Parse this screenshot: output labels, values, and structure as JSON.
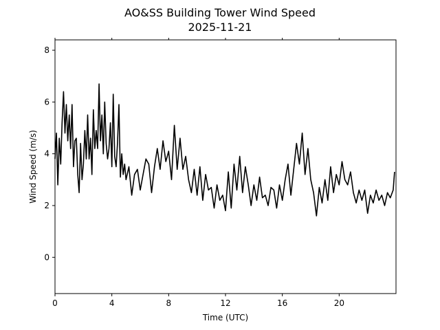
{
  "chart_data": {
    "type": "line",
    "title": "AO&SS Building Tower Wind Speed",
    "subtitle": "2025-11-21",
    "xlabel": "Time (UTC)",
    "ylabel": "Wind Speed (m/s)",
    "xlim": [
      0,
      24
    ],
    "ylim": [
      -1.4,
      8.4
    ],
    "xticks": [
      0,
      4,
      8,
      12,
      16,
      20
    ],
    "yticks": [
      0,
      2,
      4,
      6,
      8
    ],
    "grid": false,
    "line_color": "#000000",
    "series": [
      {
        "x": [
          0.0,
          0.1,
          0.2,
          0.3,
          0.4,
          0.5,
          0.6,
          0.7,
          0.8,
          0.9,
          1.0,
          1.1,
          1.2,
          1.3,
          1.4,
          1.5,
          1.6,
          1.7,
          1.8,
          1.9,
          2.0,
          2.1,
          2.2,
          2.3,
          2.4,
          2.5,
          2.6,
          2.7,
          2.8,
          2.9,
          3.0,
          3.1,
          3.2,
          3.3,
          3.4,
          3.5,
          3.6,
          3.7,
          3.8,
          3.9,
          4.0,
          4.1,
          4.2,
          4.3,
          4.4,
          4.5,
          4.6,
          4.7,
          4.8,
          4.9,
          5.0,
          5.2,
          5.4,
          5.6,
          5.8,
          6.0,
          6.2,
          6.4,
          6.6,
          6.8,
          7.0,
          7.2,
          7.4,
          7.6,
          7.8,
          8.0,
          8.2,
          8.4,
          8.6,
          8.8,
          9.0,
          9.2,
          9.4,
          9.6,
          9.8,
          10.0,
          10.2,
          10.4,
          10.6,
          10.8,
          11.0,
          11.2,
          11.4,
          11.6,
          11.8,
          12.0,
          12.2,
          12.4,
          12.6,
          12.8,
          13.0,
          13.2,
          13.4,
          13.6,
          13.8,
          14.0,
          14.2,
          14.4,
          14.6,
          14.8,
          15.0,
          15.2,
          15.4,
          15.6,
          15.8,
          16.0,
          16.2,
          16.4,
          16.6,
          16.8,
          17.0,
          17.2,
          17.4,
          17.6,
          17.8,
          18.0,
          18.2,
          18.4,
          18.6,
          18.8,
          19.0,
          19.2,
          19.4,
          19.6,
          19.8,
          20.0,
          20.2,
          20.4,
          20.6,
          20.8,
          21.0,
          21.2,
          21.4,
          21.6,
          21.8,
          22.0,
          22.2,
          22.4,
          22.6,
          22.8,
          23.0,
          23.2,
          23.4,
          23.6,
          23.8,
          23.9
        ],
        "values": [
          3.8,
          4.8,
          2.8,
          4.6,
          3.6,
          5.2,
          6.4,
          4.8,
          5.9,
          4.5,
          5.5,
          4.2,
          5.9,
          3.5,
          4.5,
          4.6,
          3.2,
          2.5,
          4.4,
          3.0,
          3.6,
          4.9,
          3.8,
          5.5,
          3.8,
          4.6,
          3.2,
          5.7,
          4.2,
          4.9,
          4.2,
          6.7,
          4.5,
          5.5,
          4.0,
          6.0,
          4.4,
          3.8,
          4.2,
          5.2,
          3.5,
          6.3,
          3.9,
          3.5,
          4.4,
          5.9,
          3.1,
          4.0,
          3.2,
          3.6,
          3.0,
          3.5,
          2.4,
          3.2,
          3.4,
          2.6,
          3.2,
          3.8,
          3.6,
          2.5,
          3.5,
          4.2,
          3.4,
          4.5,
          3.7,
          4.1,
          3.0,
          5.1,
          3.4,
          4.6,
          3.4,
          3.9,
          3.0,
          2.5,
          3.4,
          2.4,
          3.5,
          2.2,
          3.2,
          2.6,
          2.7,
          1.9,
          2.8,
          2.2,
          2.4,
          1.8,
          3.3,
          1.9,
          3.6,
          2.6,
          3.9,
          2.5,
          3.5,
          2.8,
          2.0,
          2.8,
          2.2,
          3.1,
          2.3,
          2.4,
          2.0,
          2.7,
          2.6,
          1.9,
          2.8,
          2.2,
          3.0,
          3.6,
          2.4,
          3.4,
          4.4,
          3.6,
          4.8,
          3.2,
          4.2,
          3.0,
          2.5,
          1.6,
          2.7,
          2.1,
          3.0,
          2.2,
          3.5,
          2.5,
          3.2,
          2.8,
          3.7,
          3.0,
          2.8,
          3.3,
          2.5,
          2.1,
          2.6,
          2.2,
          2.6,
          1.7,
          2.4,
          2.1,
          2.6,
          2.2,
          2.4,
          2.0,
          2.5,
          2.3,
          2.6,
          3.3
        ]
      }
    ]
  }
}
